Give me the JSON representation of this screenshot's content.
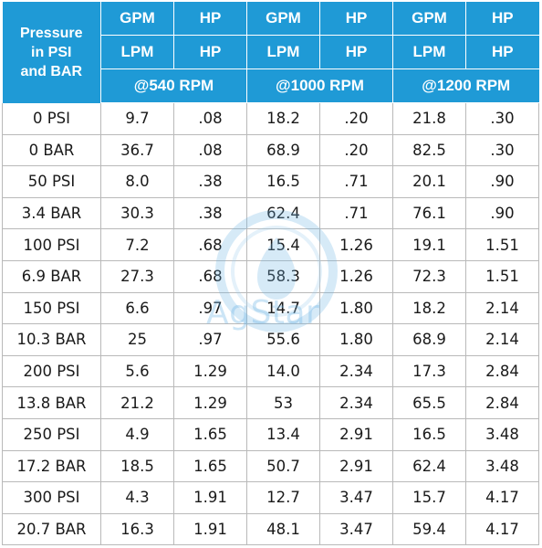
{
  "header": {
    "corner_label_line1": "Pressure",
    "corner_label_line2": "in PSI",
    "corner_label_line3": "and BAR",
    "row1": [
      "GPM",
      "HP",
      "GPM",
      "HP",
      "GPM",
      "HP"
    ],
    "row2": [
      "LPM",
      "HP",
      "LPM",
      "HP",
      "LPM",
      "HP"
    ],
    "rpm": [
      "@540 RPM",
      "@1000 RPM",
      "@1200 RPM"
    ]
  },
  "rows": [
    [
      "0 PSI",
      "9.7",
      ".08",
      "18.2",
      ".20",
      "21.8",
      ".30"
    ],
    [
      "0 BAR",
      "36.7",
      ".08",
      "68.9",
      ".20",
      "82.5",
      ".30"
    ],
    [
      "50 PSI",
      "8.0",
      ".38",
      "16.5",
      ".71",
      "20.1",
      ".90"
    ],
    [
      "3.4 BAR",
      "30.3",
      ".38",
      "62.4",
      ".71",
      "76.1",
      ".90"
    ],
    [
      "100 PSI",
      "7.2",
      ".68",
      "15.4",
      "1.26",
      "19.1",
      "1.51"
    ],
    [
      "6.9 BAR",
      "27.3",
      ".68",
      "58.3",
      "1.26",
      "72.3",
      "1.51"
    ],
    [
      "150 PSI",
      "6.6",
      ".97",
      "14.7",
      "1.80",
      "18.2",
      "2.14"
    ],
    [
      "10.3 BAR",
      "25",
      ".97",
      "55.6",
      "1.80",
      "68.9",
      "2.14"
    ],
    [
      "200 PSI",
      "5.6",
      "1.29",
      "14.0",
      "2.34",
      "17.3",
      "2.84"
    ],
    [
      "13.8 BAR",
      "21.2",
      "1.29",
      "53",
      "2.34",
      "65.5",
      "2.84"
    ],
    [
      "250 PSI",
      "4.9",
      "1.65",
      "13.4",
      "2.91",
      "16.5",
      "3.48"
    ],
    [
      "17.2 BAR",
      "18.5",
      "1.65",
      "50.7",
      "2.91",
      "62.4",
      "3.48"
    ],
    [
      "300 PSI",
      "4.3",
      "1.91",
      "12.7",
      "3.47",
      "15.7",
      "4.17"
    ],
    [
      "20.7 BAR",
      "16.3",
      "1.91",
      "48.1",
      "3.47",
      "59.4",
      "4.17"
    ]
  ],
  "watermark": {
    "text": "AgStar",
    "icon": "agstar-logo-icon"
  },
  "colors": {
    "header_bg": "#1f9ad6",
    "header_text": "#ffffff",
    "grid_line": "#b9b9b9"
  }
}
